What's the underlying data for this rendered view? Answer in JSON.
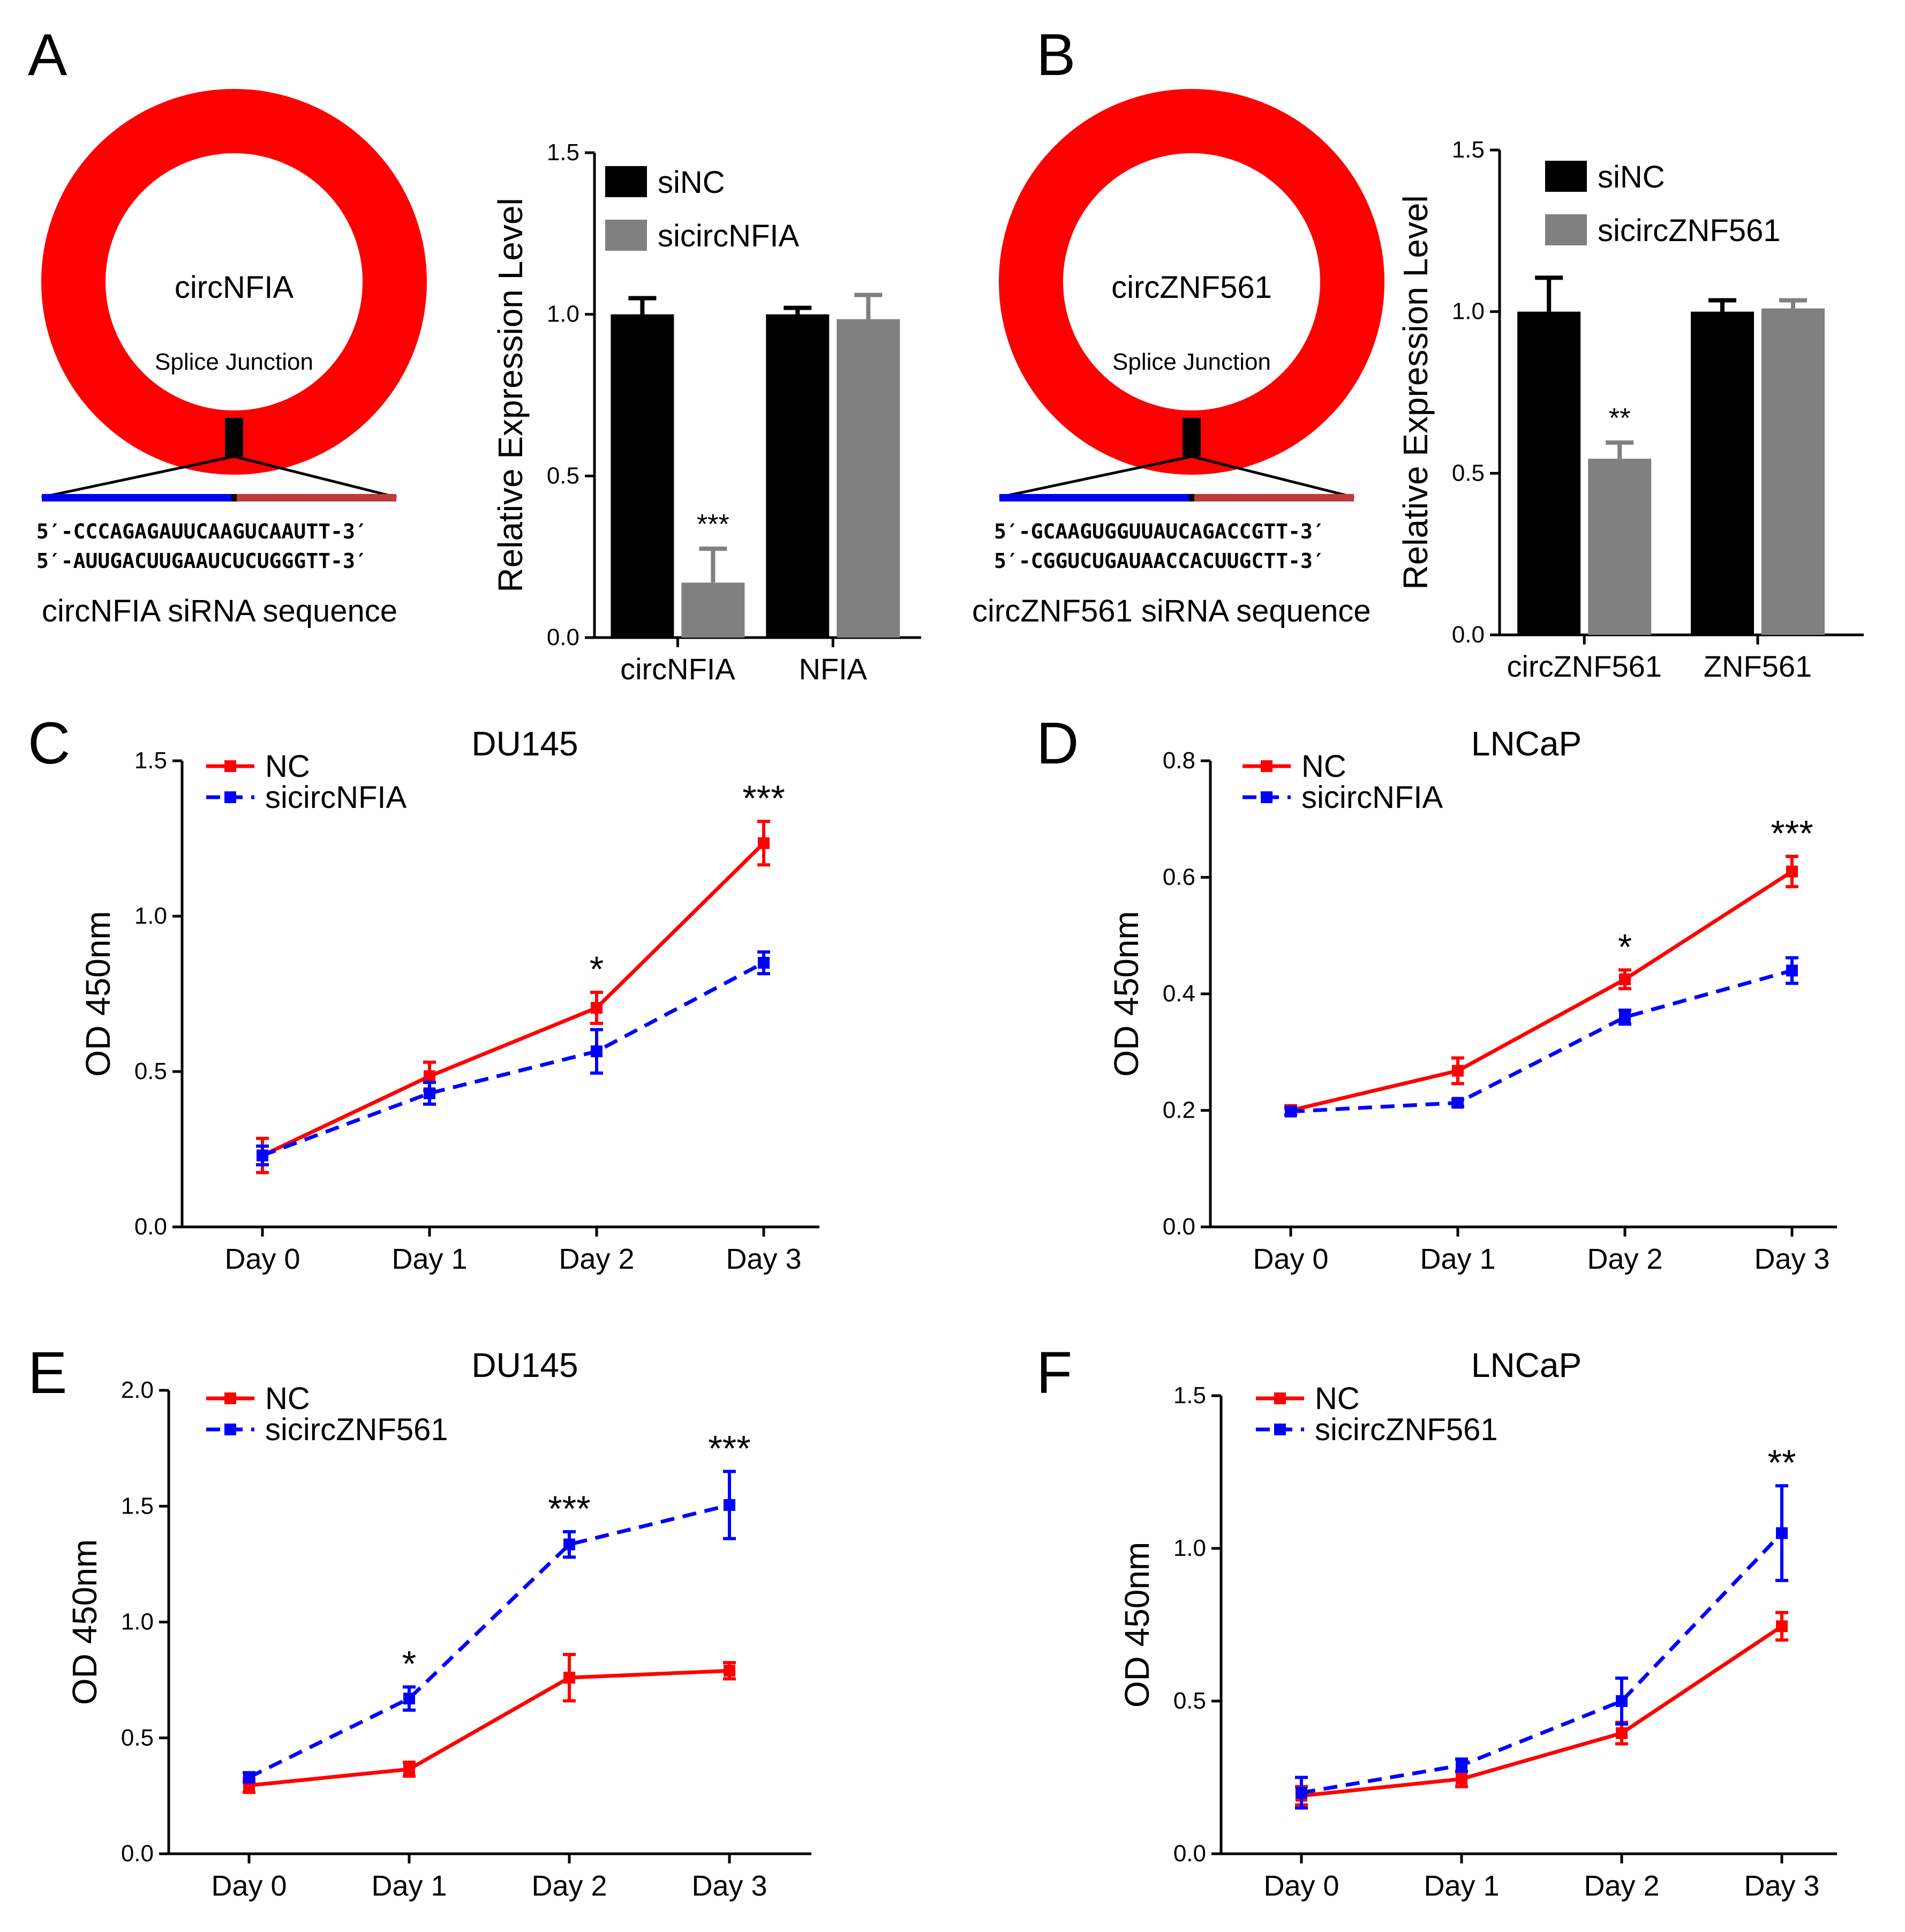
{
  "colors": {
    "red": "#ff0000",
    "blue": "#0000ff",
    "black": "#000000",
    "gray": "#808080",
    "strand_red": "#c0393b"
  },
  "panel_a": {
    "label": "A",
    "circle_name": "circNFIA",
    "junction_label": "Splice Junction",
    "seq1": "5′-CCCAGAGAUUCAAGUCAAUTT-3′",
    "seq2": "5′-AUUGACUUGAAUCUCUGGGTT-3′",
    "caption": "circNFIA siRNA sequence"
  },
  "panel_b": {
    "label": "B",
    "circle_name": "circZNF561",
    "junction_label": "Splice Junction",
    "seq1": "5′-GCAAGUGGUUAUCAGACCGTT-3′",
    "seq2": "5′-CGGUCUGAUAACCACUUGCTT-3′",
    "caption": "circZNF561 siRNA sequence"
  },
  "panel_c": {
    "label": "C"
  },
  "panel_d": {
    "label": "D"
  },
  "panel_e": {
    "label": "E"
  },
  "panel_f": {
    "label": "F"
  },
  "chart_data": [
    {
      "id": "A",
      "type": "bar",
      "title": "",
      "ylabel": "Relative Expression Level",
      "xlabel": "",
      "ylim": [
        0,
        1.5
      ],
      "yticks": [
        "0.0",
        "0.5",
        "1.0",
        "1.5"
      ],
      "categories": [
        "circNFIA",
        "NFIA"
      ],
      "series": [
        {
          "name": "siNC",
          "color": "#000000",
          "values": [
            1.0,
            1.0
          ],
          "errors": [
            0.05,
            0.02
          ]
        },
        {
          "name": "sicircNFIA",
          "color": "#808080",
          "values": [
            0.17,
            0.985
          ],
          "errors": [
            0.105,
            0.075
          ]
        }
      ],
      "annotations": [
        {
          "category": 0,
          "series": 1,
          "text": "***"
        }
      ]
    },
    {
      "id": "B",
      "type": "bar",
      "title": "",
      "ylabel": "Relative Expression Level",
      "xlabel": "",
      "ylim": [
        0,
        1.5
      ],
      "yticks": [
        "0.0",
        "0.5",
        "1.0",
        "1.5"
      ],
      "categories": [
        "circZNF561",
        "ZNF561"
      ],
      "series": [
        {
          "name": "siNC",
          "color": "#000000",
          "values": [
            1.0,
            1.0
          ],
          "errors": [
            0.105,
            0.035
          ]
        },
        {
          "name": "sicircZNF561",
          "color": "#808080",
          "values": [
            0.545,
            1.01
          ],
          "errors": [
            0.05,
            0.025
          ]
        }
      ],
      "annotations": [
        {
          "category": 0,
          "series": 1,
          "text": "**"
        }
      ]
    },
    {
      "id": "C",
      "type": "line",
      "title": "DU145",
      "ylabel": "OD 450nm",
      "xlabel": "",
      "ylim": [
        0,
        1.5
      ],
      "yticks": [
        "0.0",
        "0.5",
        "1.0",
        "1.5"
      ],
      "categories": [
        "Day 0",
        "Day 1",
        "Day 2",
        "Day 3"
      ],
      "series": [
        {
          "name": "NC",
          "color": "#ff0000",
          "dashed": false,
          "values": [
            0.23,
            0.485,
            0.705,
            1.235
          ],
          "errors": [
            0.055,
            0.045,
            0.05,
            0.07
          ]
        },
        {
          "name": "sicircNFIA",
          "color": "#0000ff",
          "dashed": true,
          "values": [
            0.23,
            0.43,
            0.565,
            0.85
          ],
          "errors": [
            0.03,
            0.035,
            0.07,
            0.035
          ]
        }
      ],
      "annotations": [
        {
          "index": 2,
          "text": "*"
        },
        {
          "index": 3,
          "text": "***"
        }
      ]
    },
    {
      "id": "D",
      "type": "line",
      "title": "LNCaP",
      "ylabel": "OD 450nm",
      "xlabel": "",
      "ylim": [
        0,
        0.8
      ],
      "yticks": [
        "0.0",
        "0.2",
        "0.4",
        "0.6",
        "0.8"
      ],
      "categories": [
        "Day 0",
        "Day 1",
        "Day 2",
        "Day 3"
      ],
      "series": [
        {
          "name": "NC",
          "color": "#ff0000",
          "dashed": false,
          "values": [
            0.2,
            0.268,
            0.425,
            0.61
          ],
          "errors": [
            0.008,
            0.022,
            0.016,
            0.026
          ]
        },
        {
          "name": "sicircNFIA",
          "color": "#0000ff",
          "dashed": true,
          "values": [
            0.198,
            0.213,
            0.36,
            0.44
          ],
          "errors": [
            0.006,
            0.006,
            0.012,
            0.022
          ]
        }
      ],
      "annotations": [
        {
          "index": 2,
          "text": "*"
        },
        {
          "index": 3,
          "text": "***"
        }
      ]
    },
    {
      "id": "E",
      "type": "line",
      "title": "DU145",
      "ylabel": "OD 450nm",
      "xlabel": "",
      "ylim": [
        0,
        2.0
      ],
      "yticks": [
        "0.0",
        "0.5",
        "1.0",
        "1.5",
        "2.0"
      ],
      "categories": [
        "Day 0",
        "Day 1",
        "Day 2",
        "Day 3"
      ],
      "series": [
        {
          "name": "NC",
          "color": "#ff0000",
          "dashed": false,
          "values": [
            0.295,
            0.365,
            0.76,
            0.79
          ],
          "errors": [
            0.03,
            0.03,
            0.1,
            0.035
          ]
        },
        {
          "name": "sicircZNF561",
          "color": "#0000ff",
          "dashed": true,
          "values": [
            0.33,
            0.67,
            1.335,
            1.505
          ],
          "errors": [
            0.02,
            0.05,
            0.055,
            0.145
          ]
        }
      ],
      "annotations": [
        {
          "index": 1,
          "text": "*"
        },
        {
          "index": 2,
          "text": "***"
        },
        {
          "index": 3,
          "text": "***"
        }
      ]
    },
    {
      "id": "F",
      "type": "line",
      "title": "LNCaP",
      "ylabel": "OD 450nm",
      "xlabel": "",
      "ylim": [
        0,
        1.5
      ],
      "yticks": [
        "0.0",
        "0.5",
        "1.0",
        "1.5"
      ],
      "categories": [
        "Day 0",
        "Day 1",
        "Day 2",
        "Day 3"
      ],
      "series": [
        {
          "name": "NC",
          "color": "#ff0000",
          "dashed": false,
          "values": [
            0.19,
            0.245,
            0.395,
            0.745
          ],
          "errors": [
            0.03,
            0.025,
            0.035,
            0.045
          ]
        },
        {
          "name": "sicircZNF561",
          "color": "#0000ff",
          "dashed": true,
          "values": [
            0.2,
            0.29,
            0.5,
            1.05
          ],
          "errors": [
            0.05,
            0.02,
            0.075,
            0.155
          ]
        }
      ],
      "annotations": [
        {
          "index": 3,
          "text": "**"
        }
      ]
    }
  ]
}
